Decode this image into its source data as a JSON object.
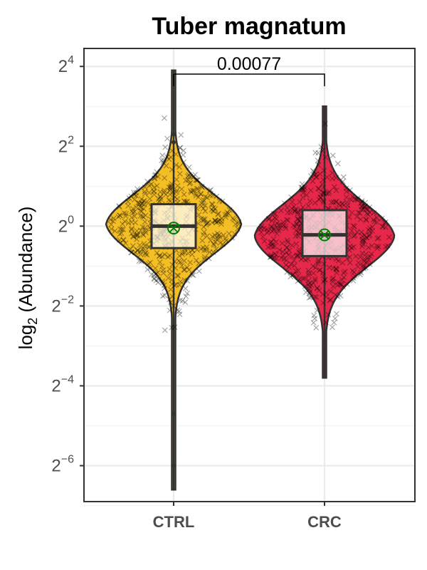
{
  "chart_data": {
    "type": "violin",
    "title": "Tuber magnatum",
    "ylabel": {
      "prefix": "log",
      "subscript": "2",
      "suffix": " (Abundance)"
    },
    "y_scale": "log2",
    "y_ticks": [
      {
        "base": "2",
        "exp": "4",
        "log2": 4
      },
      {
        "base": "2",
        "exp": "2",
        "log2": 2
      },
      {
        "base": "2",
        "exp": "0",
        "log2": 0
      },
      {
        "base": "2",
        "exp": "−2",
        "log2": -2
      },
      {
        "base": "2",
        "exp": "−4",
        "log2": -4
      },
      {
        "base": "2",
        "exp": "−6",
        "log2": -6
      }
    ],
    "ylim_log2": [
      -6.9,
      4.45
    ],
    "categories": [
      "CTRL",
      "CRC"
    ],
    "groups": [
      {
        "name": "CTRL",
        "color": "#F4BE25",
        "violin_range_log2": [
          -6.6,
          3.9
        ],
        "box_log2": {
          "q1": -0.55,
          "median": 0.0,
          "q3": 0.55
        },
        "mean_log2": -0.05,
        "outliers_log2": [
          2.1,
          2.3,
          -4.7,
          -6.0
        ]
      },
      {
        "name": "CRC",
        "color": "#E8284A",
        "violin_range_log2": [
          -3.8,
          3.0
        ],
        "box_log2": {
          "q1": -0.75,
          "median": -0.22,
          "q3": 0.4
        },
        "mean_log2": -0.22,
        "outliers_log2": []
      }
    ],
    "comparison": {
      "groups": [
        "CTRL",
        "CRC"
      ],
      "label": "0.00077"
    },
    "mean_marker_color": "#008000",
    "grid": true,
    "legend": "none"
  }
}
